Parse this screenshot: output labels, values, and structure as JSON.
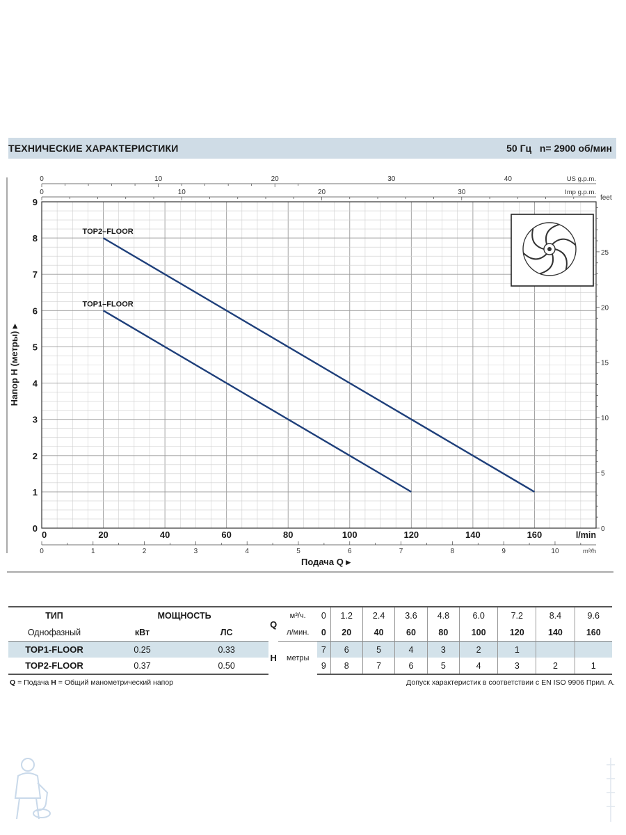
{
  "header": {
    "title": "ТЕХНИЧЕСКИЕ ХАРАКТЕРИСТИКИ",
    "freq": "50 Гц",
    "speed": "n= 2900  об/мин"
  },
  "chart_data": {
    "type": "line",
    "ylabel": "Напор H  (метры)",
    "xlabel": "Подача Q",
    "xlim": [
      0,
      180
    ],
    "ylim": [
      0,
      9
    ],
    "x_unit": "l/min",
    "x_ticks": [
      0,
      20,
      40,
      60,
      80,
      100,
      120,
      140,
      160
    ],
    "y_ticks": [
      0,
      1,
      2,
      3,
      4,
      5,
      6,
      7,
      8,
      9
    ],
    "secondary_axes": {
      "us_gpm": {
        "label": "US g.p.m.",
        "ticks": [
          0,
          10,
          20,
          30,
          40
        ],
        "per_lmin": 0.2642
      },
      "imp_gpm": {
        "label": "Imp g.p.m.",
        "ticks": [
          0,
          10,
          20,
          30
        ],
        "per_lmin": 0.22
      },
      "m3h": {
        "label": "m³/h",
        "ticks": [
          0,
          1,
          2,
          3,
          4,
          5,
          6,
          7,
          8,
          9,
          10
        ],
        "per_lmin": 0.06
      },
      "feet": {
        "label": "feet",
        "ticks": [
          0,
          5,
          10,
          15,
          20,
          25
        ],
        "per_m": 3.2808
      }
    },
    "series": [
      {
        "name": "TOP2–FLOOR",
        "x": [
          20,
          160
        ],
        "y": [
          8,
          1
        ]
      },
      {
        "name": "TOP1–FLOOR",
        "x": [
          20,
          120
        ],
        "y": [
          6,
          1
        ]
      }
    ],
    "grid": true,
    "line_color": "#1e3f7a"
  },
  "table": {
    "head1": {
      "type": "ТИП",
      "power": "МОЩНОСТЬ",
      "q": "Q",
      "unit_m3": "м³/ч.",
      "m3h": [
        "0",
        "1.2",
        "2.4",
        "3.6",
        "4.8",
        "6.0",
        "7.2",
        "8.4",
        "9.6"
      ]
    },
    "head2": {
      "phase": "Однофазный",
      "kw": "кВт",
      "hp": "ЛС",
      "unit_lmin": "л/мин.",
      "lmin": [
        "0",
        "20",
        "40",
        "60",
        "80",
        "100",
        "120",
        "140",
        "160"
      ]
    },
    "rows": [
      {
        "name": "TOP1-FLOOR",
        "kw": "0.25",
        "hp": "0.33",
        "h": [
          "7",
          "6",
          "5",
          "4",
          "3",
          "2",
          "1",
          "",
          ""
        ]
      },
      {
        "name": "TOP2-FLOOR",
        "kw": "0.37",
        "hp": "0.50",
        "h": [
          "9",
          "8",
          "7",
          "6",
          "5",
          "4",
          "3",
          "2",
          "1"
        ]
      }
    ],
    "h_label": "H",
    "h_unit": "метры"
  },
  "footer": {
    "q_key": "Q",
    "q_text": " = Подача  ",
    "h_key": "H",
    "h_text": " = Общий манометрический напор",
    "right": "Допуск характеристик в соответствии с EN ISO 9906 Прил. А."
  }
}
